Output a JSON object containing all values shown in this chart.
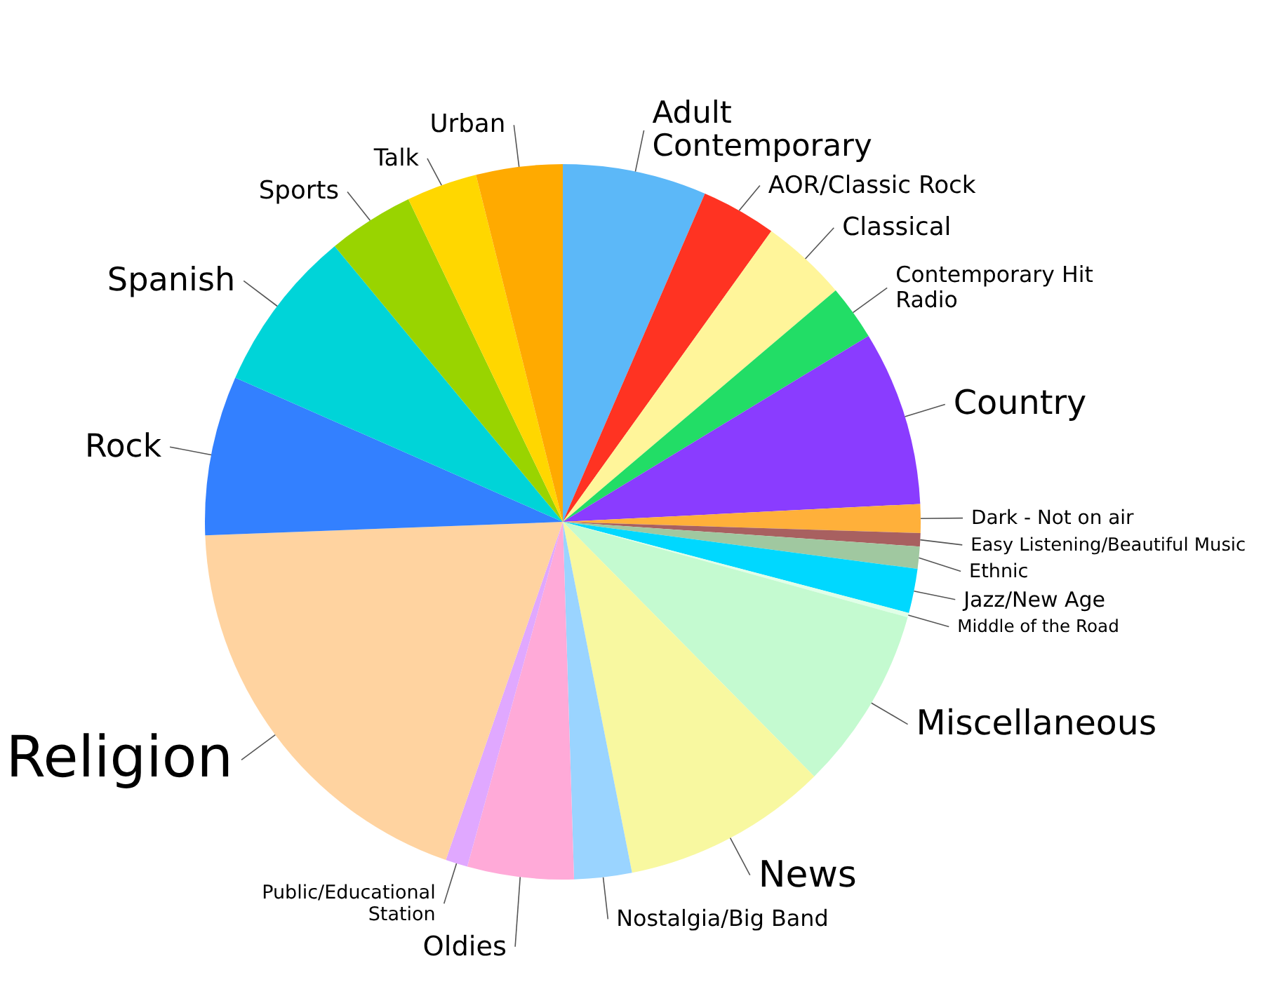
{
  "chart_data": {
    "type": "pie",
    "categories": [
      "Adult\nContemporary",
      "AOR/Classic Rock",
      "Classical",
      "Contemporary Hit\nRadio",
      "Country",
      "Dark - Not on air",
      "Easy Listening/Beautiful Music",
      "Ethnic",
      "Jazz/New Age",
      "Middle of the Road",
      "Miscellaneous",
      "News",
      "Nostalgia/Big Band",
      "Oldies",
      "Public/Educational\nStation",
      "Religion",
      "Rock",
      "Spanish",
      "Sports",
      "Talk",
      "Urban"
    ],
    "values": [
      6.5,
      3.4,
      3.9,
      2.5,
      7.9,
      1.3,
      0.6,
      1.0,
      2.0,
      0.2,
      8.3,
      9.3,
      2.6,
      4.8,
      1.0,
      19.1,
      7.2,
      7.4,
      3.9,
      3.2,
      3.9
    ],
    "colors": [
      "#5cb8f8",
      "#ff3322",
      "#fff59a",
      "#22dd66",
      "#8a3cff",
      "#ffb03a",
      "#a86060",
      "#a0c8a0",
      "#00d8ff",
      "#e0ffe8",
      "#c4fad0",
      "#f8f8a0",
      "#9ad4ff",
      "#ffaad8",
      "#e0a8ff",
      "#ffd3a0",
      "#3380ff",
      "#00d4d8",
      "#99d400",
      "#ffd700",
      "#ffaa00"
    ]
  }
}
